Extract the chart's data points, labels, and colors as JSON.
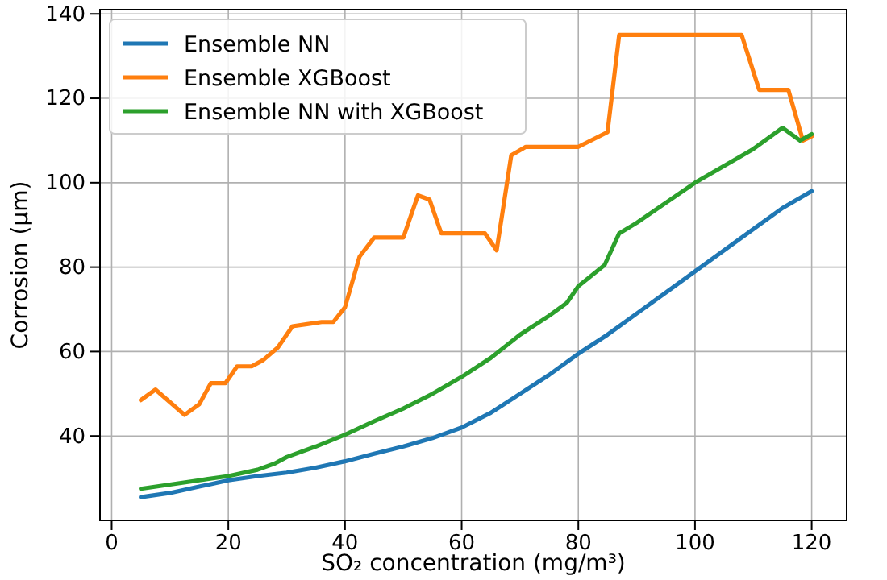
{
  "chart_data": {
    "type": "line",
    "xlabel": "SO₂ concentration (mg/m³)",
    "ylabel": "Corrosion (μm)",
    "xlim": [
      -2,
      126
    ],
    "ylim": [
      20,
      141
    ],
    "xticks": [
      0,
      20,
      40,
      60,
      80,
      100,
      120
    ],
    "yticks": [
      40,
      60,
      80,
      100,
      120,
      140
    ],
    "grid": true,
    "legend": "top left",
    "line_style": "solid",
    "marker": "none",
    "series": [
      {
        "name": "Ensemble NN",
        "color": "#1f77b4",
        "x": [
          5,
          10,
          15,
          20,
          25,
          30,
          35,
          40,
          45,
          50,
          55,
          60,
          65,
          70,
          75,
          80,
          85,
          90,
          95,
          100,
          105,
          110,
          115,
          120
        ],
        "values": [
          25.5,
          26.5,
          28,
          29.5,
          30.5,
          31.3,
          32.5,
          34,
          35.8,
          37.5,
          39.5,
          42,
          45.5,
          50,
          54.5,
          59.5,
          64,
          69,
          74,
          79,
          84,
          89,
          94,
          98
        ]
      },
      {
        "name": "Ensemble XGBoost",
        "color": "#ff7f0e",
        "x": [
          5,
          7.5,
          10,
          12.5,
          15,
          17,
          19.5,
          21.5,
          24,
          26,
          28.5,
          31,
          33.5,
          36,
          38,
          40,
          42.5,
          45,
          47,
          50,
          52.5,
          54.5,
          56.5,
          59,
          61.5,
          64,
          66,
          68.5,
          71,
          73,
          76,
          78,
          80,
          85,
          87,
          90,
          100,
          108,
          111,
          116,
          118.5,
          120
        ],
        "values": [
          48.5,
          51,
          48,
          45,
          47.5,
          52.5,
          52.5,
          56.5,
          56.5,
          58,
          61,
          66,
          66.5,
          67,
          67,
          70.5,
          82.5,
          87,
          87,
          87,
          97,
          96,
          88,
          88,
          88,
          88,
          84,
          106.5,
          108.5,
          108.5,
          108.5,
          108.5,
          108.5,
          112,
          135,
          135,
          135,
          135,
          122,
          122,
          110,
          111
        ]
      },
      {
        "name": "Ensemble NN with XGBoost",
        "color": "#2ca02c",
        "x": [
          5,
          10,
          15,
          20,
          25,
          28,
          30,
          35,
          40,
          45,
          50,
          55,
          60,
          65,
          70,
          75,
          78,
          80,
          84.5,
          87,
          90,
          100,
          110,
          115,
          118,
          120
        ],
        "values": [
          27.5,
          28.5,
          29.5,
          30.5,
          32,
          33.5,
          35,
          37.5,
          40.3,
          43.5,
          46.5,
          50,
          54,
          58.5,
          64,
          68.5,
          71.5,
          75.5,
          80.5,
          88,
          90.5,
          100,
          108,
          113,
          110,
          111.5
        ]
      }
    ]
  }
}
